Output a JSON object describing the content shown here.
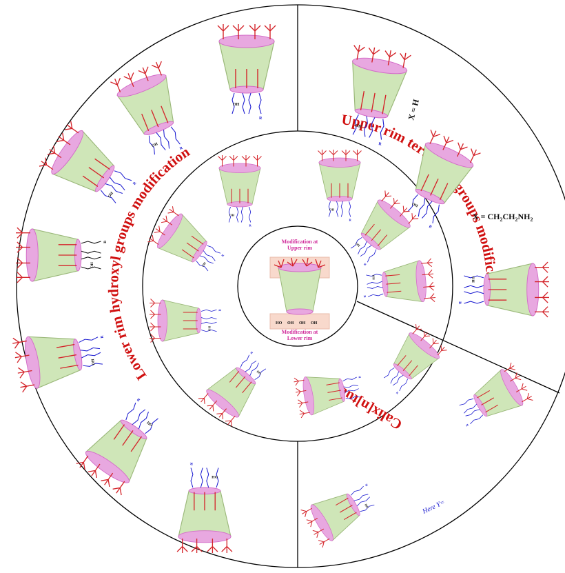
{
  "sections": {
    "lower_rim": "Lower rim hydroxyl groups modification",
    "upper_rim": "Upper rim tert-butyl groups modification",
    "calixnaltubes": "Calix[n]tubes"
  },
  "center": {
    "upper_line1": "Modification at",
    "upper_line2": "Upper rim",
    "lower_line1": "Modification at",
    "lower_line2": "Lower rim",
    "oh_labels": [
      "HO",
      "OH",
      "OH",
      "OH"
    ]
  },
  "annotations": {
    "x_h": "X = H",
    "x_amine": "X = CH",
    "x_amine_sub2": "2",
    "x_amine_mid": "CH",
    "x_amine_sub2b": "2",
    "x_amine_end": "NH",
    "x_amine_sub2c": "2",
    "here_y": "Here Y= "
  },
  "chem_labels": {
    "r": "R",
    "n": "n",
    "o": "O",
    "oh": "OH",
    "ho": "HO",
    "nh2": "NH2",
    "x": "X",
    "y": "Y"
  },
  "colors": {
    "ring_line": "#000000",
    "cone_fill": "#cfe6b8",
    "cone_rim": "#e8a8e0",
    "cone_rim_dark": "#d36cc8",
    "tbu": "#d4242a",
    "substituent_blue": "#1a1ad0",
    "title_red": "#d01010",
    "center_pink": "#d02a9a",
    "center_box": "#f7d3c4"
  }
}
